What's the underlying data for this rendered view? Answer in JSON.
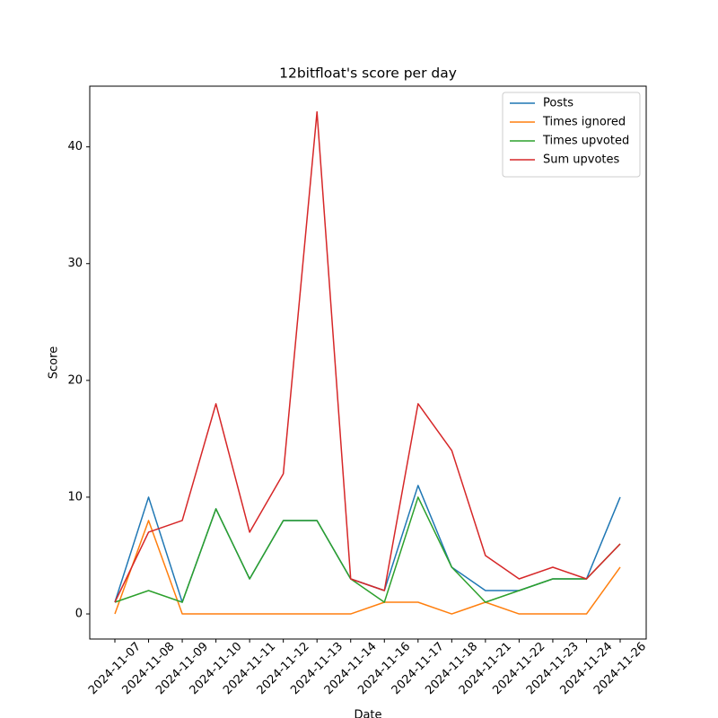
{
  "chart_data": {
    "type": "line",
    "title": "12bitfloat's score per day",
    "x_label": "Date",
    "y_label": "Score",
    "categories": [
      "2024-11-07",
      "2024-11-08",
      "2024-11-09",
      "2024-11-10",
      "2024-11-11",
      "2024-11-12",
      "2024-11-13",
      "2024-11-14",
      "2024-11-16",
      "2024-11-17",
      "2024-11-18",
      "2024-11-21",
      "2024-11-22",
      "2024-11-23",
      "2024-11-24",
      "2024-11-26"
    ],
    "series": [
      {
        "name": "Posts",
        "color": "#1f77b4",
        "values": [
          1,
          10,
          1,
          9,
          3,
          8,
          8,
          3,
          2,
          11,
          4,
          2,
          2,
          3,
          3,
          10
        ]
      },
      {
        "name": "Times ignored",
        "color": "#ff7f0e",
        "values": [
          0,
          8,
          0,
          0,
          0,
          0,
          0,
          0,
          1,
          1,
          0,
          1,
          0,
          0,
          0,
          4
        ]
      },
      {
        "name": "Times upvoted",
        "color": "#2ca02c",
        "values": [
          1,
          2,
          1,
          9,
          3,
          8,
          8,
          3,
          1,
          10,
          4,
          1,
          2,
          3,
          3,
          6
        ]
      },
      {
        "name": "Sum upvotes",
        "color": "#d62728",
        "values": [
          1,
          7,
          8,
          18,
          7,
          12,
          43,
          3,
          2,
          18,
          14,
          5,
          3,
          4,
          3,
          6
        ]
      }
    ],
    "ylim": [
      -2.15,
      45.2
    ],
    "yticks": [
      0,
      10,
      20,
      30,
      40
    ],
    "legend": "upper right"
  }
}
